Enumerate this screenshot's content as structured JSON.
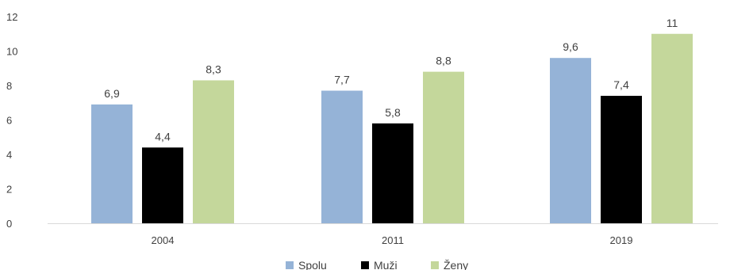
{
  "chart_data": {
    "type": "bar",
    "categories": [
      "2004",
      "2011",
      "2019"
    ],
    "series": [
      {
        "name": "Spolu",
        "color": "#95b3d7",
        "values": [
          6.9,
          7.7,
          9.6
        ],
        "labels": [
          "6,9",
          "7,7",
          "9,6"
        ]
      },
      {
        "name": "Muži",
        "color": "#000000",
        "values": [
          4.4,
          5.8,
          7.4
        ],
        "labels": [
          "4,4",
          "5,8",
          "7,4"
        ]
      },
      {
        "name": "Ženy",
        "color": "#c4d79b",
        "values": [
          8.3,
          8.8,
          11
        ],
        "labels": [
          "8,3",
          "8,8",
          "11"
        ]
      }
    ],
    "ylim": [
      0,
      12
    ],
    "yticks": [
      0,
      2,
      4,
      6,
      8,
      10,
      12
    ],
    "ytick_labels": [
      "0",
      "2",
      "4",
      "6",
      "8",
      "10",
      "12"
    ],
    "grid": false,
    "legend_position": "bottom"
  }
}
